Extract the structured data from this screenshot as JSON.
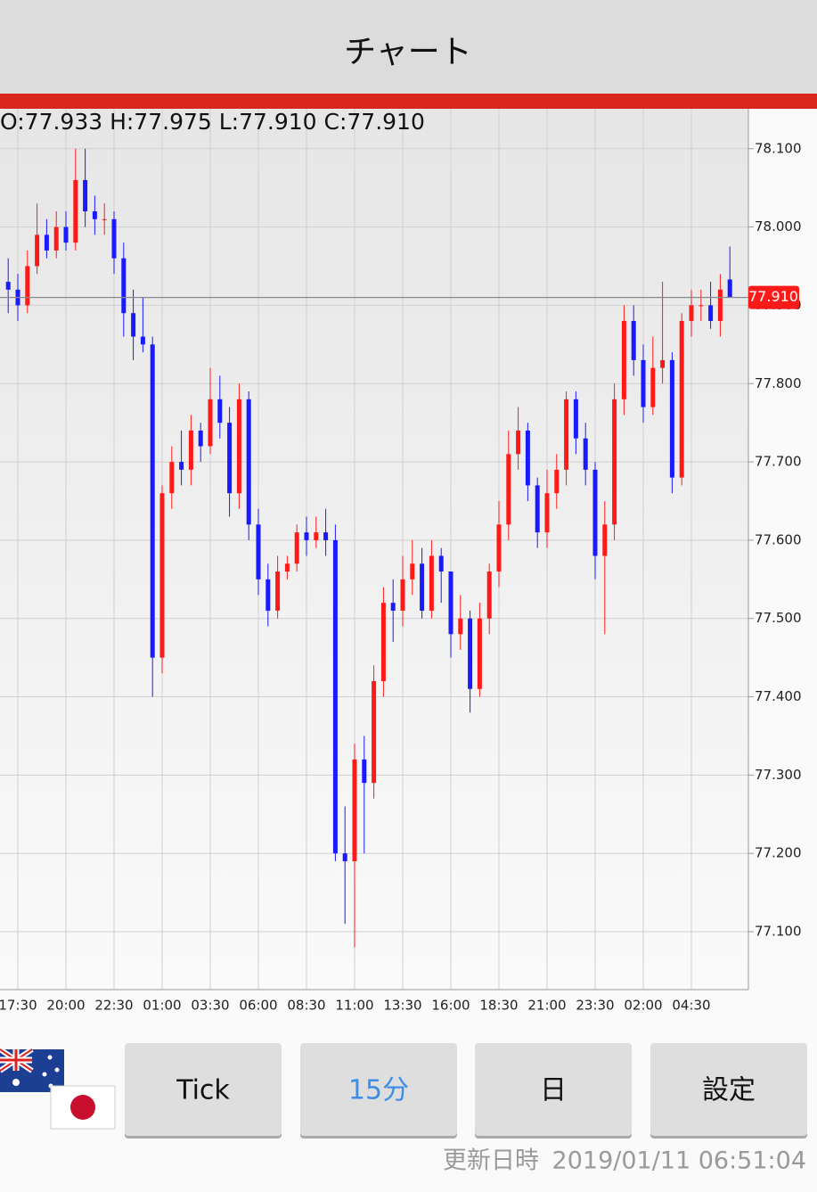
{
  "header": {
    "title": "チャート"
  },
  "chart_data": {
    "type": "candlestick",
    "ohlc_label": "O:77.933 H:77.975 L:77.910 C:77.910",
    "categories": [
      null,
      "17:30",
      null,
      null,
      null,
      null,
      "20:00",
      null,
      null,
      null,
      null,
      "22:30",
      null,
      null,
      null,
      null,
      "01:00",
      null,
      null,
      null,
      null,
      "03:30",
      null,
      null,
      null,
      null,
      "06:00",
      null,
      null,
      null,
      null,
      "08:30",
      null,
      null,
      null,
      null,
      "11:00",
      null,
      null,
      null,
      null,
      "13:30",
      null,
      null,
      null,
      null,
      "16:00",
      null,
      null,
      null,
      null,
      "18:30",
      null,
      null,
      null,
      null,
      "21:00",
      null,
      null,
      null,
      null,
      "23:30",
      null,
      null,
      null,
      null,
      "02:00",
      null,
      null,
      null,
      null,
      "04:30",
      null,
      null,
      null,
      null
    ],
    "open": [
      77.93,
      77.92,
      77.9,
      77.95,
      77.99,
      77.97,
      78.0,
      77.98,
      78.06,
      78.02,
      78.01,
      78.01,
      77.96,
      77.89,
      77.86,
      77.85,
      77.45,
      77.66,
      77.7,
      77.69,
      77.74,
      77.72,
      77.78,
      77.75,
      77.66,
      77.78,
      77.62,
      77.55,
      77.51,
      77.56,
      77.57,
      77.61,
      77.6,
      77.61,
      77.6,
      77.2,
      77.19,
      77.32,
      77.29,
      77.42,
      77.52,
      77.51,
      77.55,
      77.57,
      77.51,
      77.58,
      77.56,
      77.48,
      77.5,
      77.41,
      77.5,
      77.56,
      77.62,
      77.71,
      77.74,
      77.67,
      77.61,
      77.66,
      77.69,
      77.78,
      77.73,
      77.69,
      77.58,
      77.62,
      77.78,
      77.88,
      77.83,
      77.77,
      77.82,
      77.83,
      77.68,
      77.88,
      77.9,
      77.9,
      77.88,
      77.933
    ],
    "high": [
      77.96,
      77.94,
      77.97,
      78.03,
      78.01,
      78.02,
      78.02,
      78.1,
      78.1,
      78.04,
      78.03,
      78.02,
      77.98,
      77.92,
      77.91,
      77.86,
      77.67,
      77.72,
      77.74,
      77.76,
      77.75,
      77.82,
      77.81,
      77.77,
      77.8,
      77.79,
      77.64,
      77.57,
      77.58,
      77.58,
      77.62,
      77.63,
      77.63,
      77.64,
      77.62,
      77.26,
      77.34,
      77.35,
      77.44,
      77.54,
      77.55,
      77.58,
      77.6,
      77.59,
      77.6,
      77.59,
      77.56,
      77.53,
      77.51,
      77.52,
      77.57,
      77.65,
      77.74,
      77.77,
      77.75,
      77.68,
      77.69,
      77.71,
      77.79,
      77.79,
      77.75,
      77.7,
      77.65,
      77.8,
      77.9,
      77.9,
      77.85,
      77.86,
      77.93,
      77.84,
      77.89,
      77.92,
      77.92,
      77.93,
      77.94,
      77.975
    ],
    "low": [
      77.89,
      77.88,
      77.89,
      77.94,
      77.96,
      77.96,
      77.97,
      77.97,
      78.0,
      77.99,
      77.99,
      77.94,
      77.86,
      77.83,
      77.84,
      77.4,
      77.43,
      77.64,
      77.67,
      77.67,
      77.7,
      77.71,
      77.73,
      77.63,
      77.64,
      77.6,
      77.53,
      77.49,
      77.5,
      77.55,
      77.56,
      77.58,
      77.59,
      77.58,
      77.19,
      77.11,
      77.08,
      77.2,
      77.27,
      77.4,
      77.47,
      77.49,
      77.53,
      77.5,
      77.5,
      77.52,
      77.45,
      77.46,
      77.38,
      77.4,
      77.48,
      77.54,
      77.6,
      77.69,
      77.65,
      77.59,
      77.59,
      77.64,
      77.67,
      77.71,
      77.67,
      77.55,
      77.48,
      77.6,
      77.76,
      77.81,
      77.75,
      77.76,
      77.8,
      77.66,
      77.67,
      77.86,
      77.88,
      77.87,
      77.86,
      77.91
    ],
    "close": [
      77.92,
      77.9,
      77.95,
      77.99,
      77.97,
      78.0,
      77.98,
      78.06,
      78.02,
      78.01,
      78.01,
      77.96,
      77.89,
      77.86,
      77.85,
      77.45,
      77.66,
      77.7,
      77.69,
      77.74,
      77.72,
      77.78,
      77.75,
      77.66,
      77.78,
      77.62,
      77.55,
      77.51,
      77.56,
      77.57,
      77.61,
      77.6,
      77.61,
      77.6,
      77.2,
      77.19,
      77.32,
      77.29,
      77.42,
      77.52,
      77.51,
      77.55,
      77.57,
      77.51,
      77.58,
      77.56,
      77.48,
      77.5,
      77.41,
      77.5,
      77.56,
      77.62,
      77.71,
      77.74,
      77.67,
      77.61,
      77.66,
      77.69,
      77.78,
      77.73,
      77.69,
      77.58,
      77.62,
      77.78,
      77.88,
      77.83,
      77.77,
      77.82,
      77.83,
      77.68,
      77.88,
      77.9,
      77.9,
      77.88,
      77.92,
      77.91
    ],
    "up_color": "#ff1a1a",
    "down_color": "#1a1aff",
    "ylim": [
      77.026,
      78.151
    ],
    "yticks": [
      {
        "value": 77.1,
        "label": "77.100"
      },
      {
        "value": 77.2,
        "label": "77.200"
      },
      {
        "value": 77.3,
        "label": "77.300"
      },
      {
        "value": 77.4,
        "label": "77.400"
      },
      {
        "value": 77.5,
        "label": "77.500"
      },
      {
        "value": 77.6,
        "label": "77.600"
      },
      {
        "value": 77.7,
        "label": "77.700"
      },
      {
        "value": 77.8,
        "label": "77.800"
      },
      {
        "value": 77.9,
        "label": "77.900"
      },
      {
        "value": 78.0,
        "label": "78.000"
      },
      {
        "value": 78.1,
        "label": "78.100"
      }
    ],
    "last_price": {
      "value": 77.91,
      "label": "77.910"
    },
    "grid": true
  },
  "buttons": [
    "Tick",
    "15分",
    "日",
    "設定"
  ],
  "footer": {
    "updated_label": "更新日時",
    "updated_at": "2019/01/11 06:51:04"
  }
}
